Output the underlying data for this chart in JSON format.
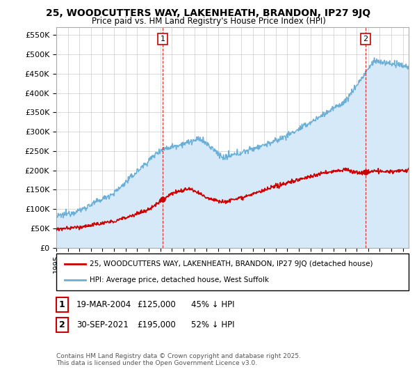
{
  "title": "25, WOODCUTTERS WAY, LAKENHEATH, BRANDON, IP27 9JQ",
  "subtitle": "Price paid vs. HM Land Registry's House Price Index (HPI)",
  "ylabel_ticks": [
    "£0",
    "£50K",
    "£100K",
    "£150K",
    "£200K",
    "£250K",
    "£300K",
    "£350K",
    "£400K",
    "£450K",
    "£500K",
    "£550K"
  ],
  "ytick_values": [
    0,
    50000,
    100000,
    150000,
    200000,
    250000,
    300000,
    350000,
    400000,
    450000,
    500000,
    550000
  ],
  "ylim": [
    0,
    570000
  ],
  "xlim_start": 1995.0,
  "xlim_end": 2025.5,
  "hpi_color": "#6baed6",
  "hpi_fill_color": "#d6e9f8",
  "price_color": "#cc0000",
  "marker1_date": 2004.22,
  "marker1_price": 125000,
  "marker2_date": 2021.75,
  "marker2_price": 195000,
  "legend_label1": "25, WOODCUTTERS WAY, LAKENHEATH, BRANDON, IP27 9JQ (detached house)",
  "legend_label2": "HPI: Average price, detached house, West Suffolk",
  "note1_date": "19-MAR-2004",
  "note1_price": "£125,000",
  "note1_detail": "45% ↓ HPI",
  "note2_date": "30-SEP-2021",
  "note2_price": "£195,000",
  "note2_detail": "52% ↓ HPI",
  "footer": "Contains HM Land Registry data © Crown copyright and database right 2025.\nThis data is licensed under the Open Government Licence v3.0.",
  "bg_color": "#ffffff",
  "grid_color": "#cccccc"
}
